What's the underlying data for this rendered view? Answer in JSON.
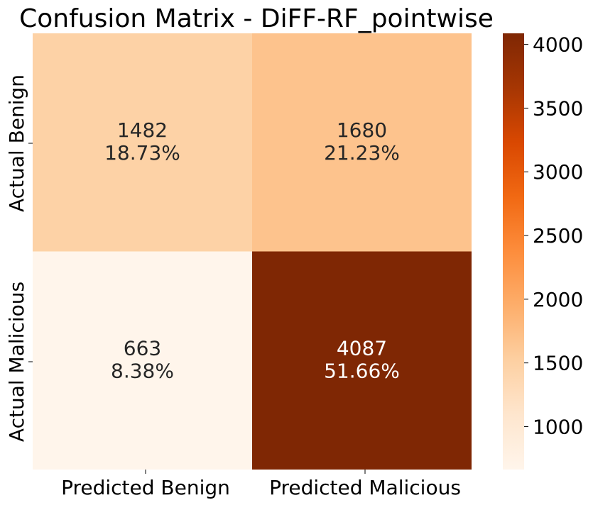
{
  "chart_data": {
    "type": "heatmap",
    "title": "Confusion Matrix - DiFF-RF_pointwise",
    "x_labels": [
      "Predicted Benign",
      "Predicted Malicious"
    ],
    "y_labels": [
      "Actual Benign",
      "Actual Malicious"
    ],
    "values": [
      [
        1482,
        1680
      ],
      [
        663,
        4087
      ]
    ],
    "percent_labels": [
      [
        "18.73%",
        "21.23%"
      ],
      [
        "8.38%",
        "51.66%"
      ]
    ],
    "colormap": "Oranges",
    "colorbar": {
      "range": [
        663,
        4087
      ],
      "ticks": [
        1000,
        1500,
        2000,
        2500,
        3000,
        3500,
        4000
      ],
      "tick_labels": [
        "1000",
        "1500",
        "2000",
        "2500",
        "3000",
        "3500",
        "4000"
      ]
    },
    "grid": false,
    "colorbar_position": "right"
  }
}
